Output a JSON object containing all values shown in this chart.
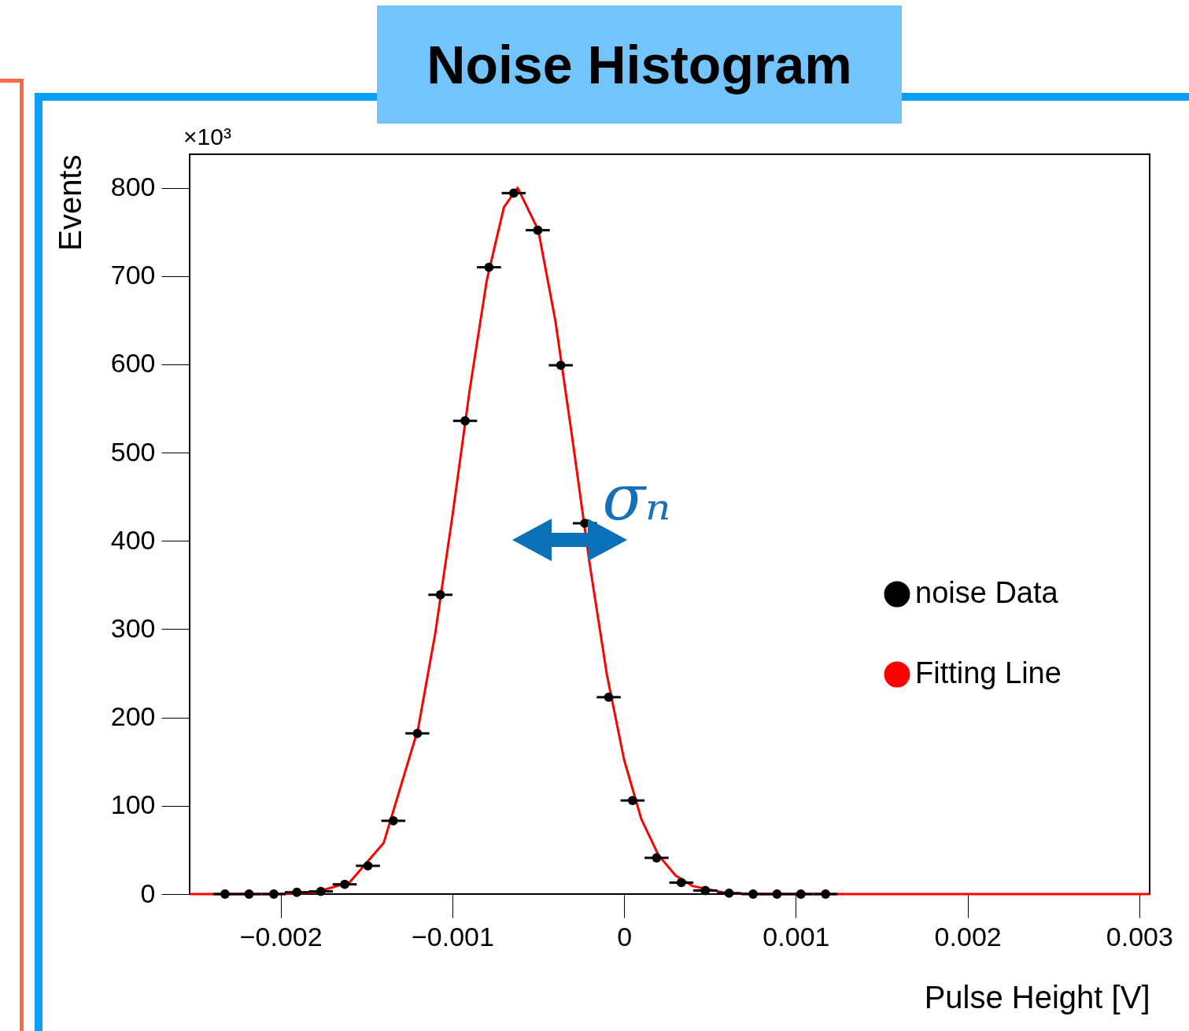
{
  "chart_data": {
    "type": "scatter",
    "title": "Noise Histogram",
    "xlabel": "Pulse Height [V]",
    "ylabel": "Events",
    "xlim": [
      -0.00253,
      0.00306
    ],
    "ylim": [
      0,
      838
    ],
    "xticks": [
      {
        "value": -0.002,
        "label": "−0.002"
      },
      {
        "value": -0.001,
        "label": "−0.001"
      },
      0,
      0.001,
      0.002,
      0.003
    ],
    "yticks": [
      0,
      100,
      200,
      300,
      400,
      500,
      600,
      700,
      800
    ],
    "grid": false,
    "legend": "right",
    "annotations": [
      "×10³",
      "σₙ"
    ],
    "series": [
      {
        "name": "noise Data",
        "color": "#000000",
        "marker": "circle",
        "x": [
          -0.002324,
          -0.002184,
          -0.00204,
          -0.001906,
          -0.001766,
          -0.001627,
          -0.001492,
          -0.001344,
          -0.001204,
          -0.00107,
          -0.000926,
          -0.000787,
          -0.000643,
          -0.000503,
          -0.000369,
          -0.000229,
          -9e-05,
          4.9e-05,
          0.000189,
          0.000333,
          0.000472,
          0.000611,
          0.000751,
          0.00089,
          0.001029,
          0.001173
        ],
        "values": [
          0,
          0,
          0,
          2,
          3,
          11,
          32,
          83,
          182,
          339,
          536,
          710,
          794,
          752,
          599,
          420,
          223,
          106,
          41,
          13,
          4,
          1,
          0,
          0,
          0,
          0
        ],
        "xerrors": [
          7e-05,
          7e-05,
          7e-05,
          7e-05,
          7e-05,
          7e-05,
          7e-05,
          7e-05,
          7e-05,
          7e-05,
          7e-05,
          7e-05,
          7e-05,
          7e-05,
          7e-05,
          7e-05,
          7e-05,
          7e-05,
          7e-05,
          7e-05,
          7e-05,
          7e-05,
          7e-05,
          7e-05,
          7e-05,
          7e-05
        ]
      },
      {
        "name": "Fitting Line",
        "type": "line",
        "color": "#ff0000",
        "line_style": "solid",
        "x": [
          -0.00253,
          -0.002,
          -0.0018,
          -0.0016,
          -0.0014,
          -0.0012,
          -0.0011,
          -0.001,
          -0.0009,
          -0.0008,
          -0.0007,
          -0.00062,
          -0.0005,
          -0.0004,
          -0.0003,
          -0.0002,
          -0.0001,
          0,
          0.0001,
          0.0002,
          0.0003,
          0.0004,
          0.0006,
          0.0008,
          0.00306
        ],
        "values": [
          0,
          0,
          2,
          13,
          58,
          187,
          295,
          428,
          570,
          695,
          778,
          800,
          752,
          649,
          514,
          373,
          248,
          152,
          85,
          44,
          21,
          9,
          1,
          0,
          0
        ]
      }
    ]
  }
}
